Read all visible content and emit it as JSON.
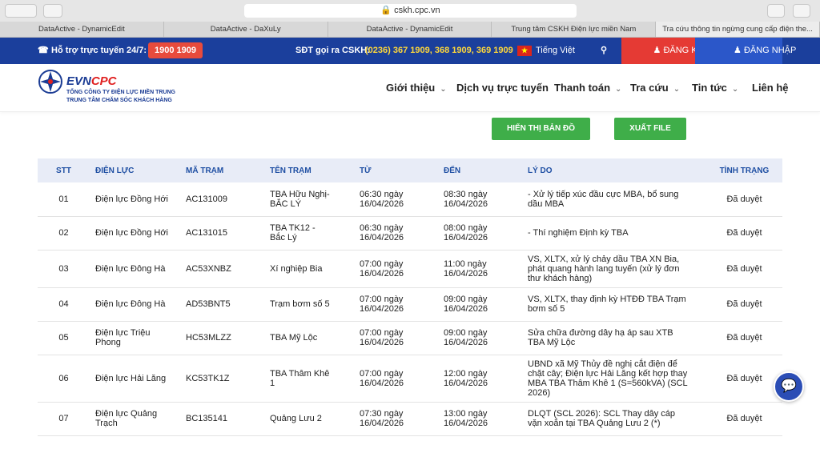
{
  "browser": {
    "url": "cskh.cpc.vn",
    "tabs": [
      "DataActive - DynamicEdit",
      "DataActive - DaXuLy",
      "DataActive - DynamicEdit",
      "Trung tâm CSKH Điện lực miền Nam",
      "Tra cứu thông tin ngừng cung cấp điện the..."
    ]
  },
  "topbar": {
    "support_label": "Hỗ trợ trực tuyến 24/7:",
    "hotline": "1900 1909",
    "cskh_label": "SĐT gọi ra CSKH:",
    "cskh_numbers": "(0236) 367 1909, 368 1909, 369 1909",
    "language": "Tiếng Việt",
    "register": "ĐĂNG KÝ",
    "login": "ĐĂNG NHẬP"
  },
  "header": {
    "logo_evn": "EVN",
    "logo_cpc": "CPC",
    "company": "TỔNG CÔNG TY ĐIỆN LỰC MIỀN TRUNG",
    "center": "TRUNG TÂM CHĂM SÓC KHÁCH HÀNG",
    "nav": [
      "Giới thiệu",
      "Dịch vụ trực tuyến",
      "Thanh toán",
      "Tra cứu",
      "Tin tức",
      "Liên hệ"
    ]
  },
  "actions": [
    "HIỂN THỊ BẢN ĐỒ",
    "XUẤT FILE"
  ],
  "table": {
    "columns": [
      "STT",
      "ĐIỆN LỰC",
      "MÃ TRẠM",
      "TÊN TRẠM",
      "TỪ",
      "ĐẾN",
      "LÝ DO",
      "TÌNH TRẠNG"
    ],
    "rows": [
      [
        "01",
        "Điện lực Đồng Hới",
        "AC131009",
        "TBA Hữu Nghị-BẮC LÝ",
        "06:30 ngày 16/04/2026",
        "08:30 ngày 16/04/2026",
        "- Xử lý tiếp xúc đầu cực MBA, bổ sung dầu MBA",
        "Đã duyệt"
      ],
      [
        "02",
        "Điện lực Đồng Hới",
        "AC131015",
        "TBA TK12 - Bắc Lý",
        "06:30 ngày 16/04/2026",
        "08:00 ngày 16/04/2026",
        "- Thí nghiệm Định kỳ TBA",
        "Đã duyệt"
      ],
      [
        "03",
        "Điện lực Đông Hà",
        "AC53XNBZ",
        "Xí nghiệp Bia",
        "07:00 ngày 16/04/2026",
        "11:00 ngày 16/04/2026",
        "VS, XLTX, xử lý chảy dầu TBA XN Bia, phát quang hành lang tuyến (xử lý đơn thư khách hàng)",
        "Đã duyệt"
      ],
      [
        "04",
        "Điện lực Đông Hà",
        "AD53BNT5",
        "Trạm bơm số 5",
        "07:00 ngày 16/04/2026",
        "09:00 ngày 16/04/2026",
        "VS, XLTX, thay định kỳ HTĐĐ TBA Trạm bơm số 5",
        "Đã duyệt"
      ],
      [
        "05",
        "Điện lực Triệu Phong",
        "HC53MLZZ",
        "TBA Mỹ Lộc",
        "07:00 ngày 16/04/2026",
        "09:00 ngày 16/04/2026",
        "Sửa chữa đường dây hạ áp sau XTB TBA Mỹ Lộc",
        "Đã duyệt"
      ],
      [
        "06",
        "Điện lực Hải Lăng",
        "KC53TK1Z",
        "TBA Thâm Khê 1",
        "07:00 ngày 16/04/2026",
        "12:00 ngày 16/04/2026",
        "UBND xã Mỹ Thủy đề nghị cắt điện để chặt cây; Điện lực Hải Lăng kết hợp thay MBA TBA Thâm Khê 1 (S=560kVA) (SCL 2026)",
        "Đã duyệt"
      ],
      [
        "07",
        "Điện lực Quảng Trạch",
        "BC135141",
        "Quảng Lưu 2",
        "07:30 ngày 16/04/2026",
        "13:00 ngày 16/04/2026",
        "DLQT (SCL 2026): SCL Thay dây cáp vặn xoắn tại TBA Quảng Lưu 2 (*)",
        "Đã duyệt"
      ]
    ]
  }
}
